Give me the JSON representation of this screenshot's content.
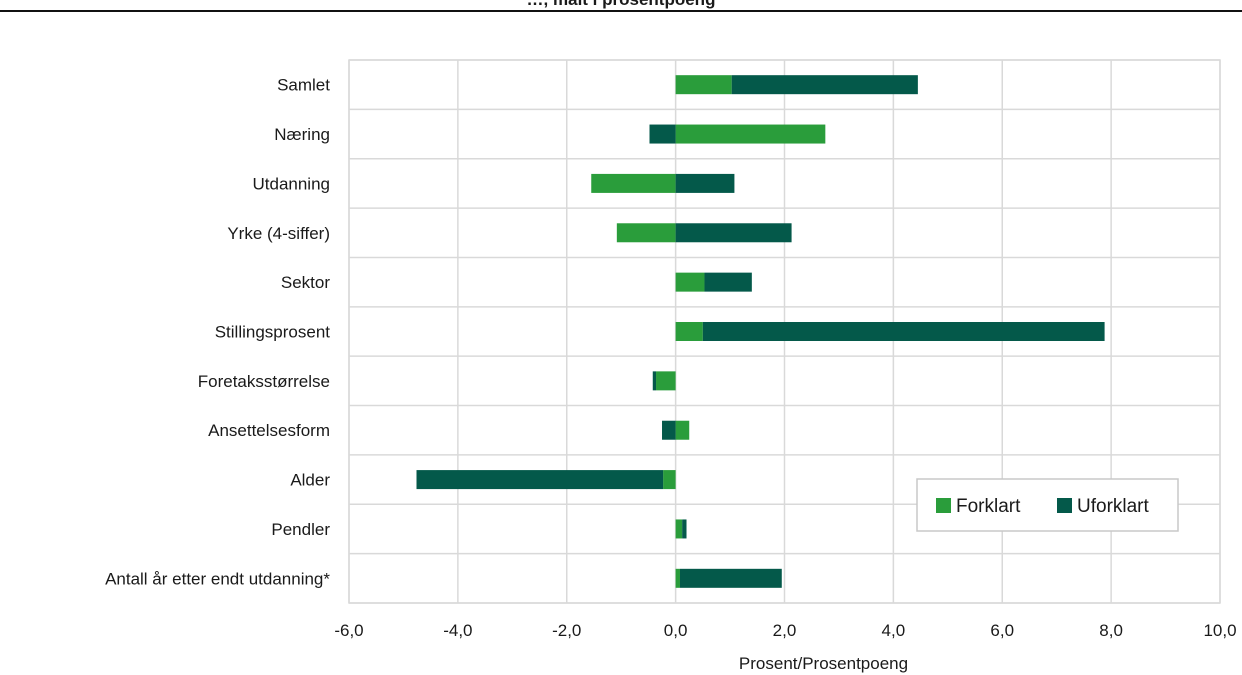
{
  "header": {
    "title_fragment": "…, målt i prosentpoeng"
  },
  "colors": {
    "forklart": "#2a9d3b",
    "uforklart": "#04594a",
    "grid": "#d9d9d9",
    "frame": "#d9d9d9"
  },
  "chart_data": {
    "type": "bar",
    "orientation": "horizontal",
    "stacked": true,
    "categories": [
      "Samlet",
      "Næring",
      "Utdanning",
      "Yrke (4-siffer)",
      "Sektor",
      "Stillingsprosent",
      "Foretaksstørrelse",
      "Ansettelsesform",
      "Alder",
      "Pendler",
      "Antall år etter endt utdanning*"
    ],
    "series": [
      {
        "name": "Forklart",
        "values": [
          1.03,
          2.75,
          -1.55,
          -1.08,
          0.53,
          0.5,
          -0.36,
          0.25,
          -0.23,
          0.12,
          0.08
        ]
      },
      {
        "name": "Uforklart",
        "values": [
          3.42,
          -0.48,
          1.08,
          2.13,
          0.87,
          7.38,
          -0.06,
          -0.25,
          -4.53,
          0.08,
          1.87
        ]
      }
    ],
    "x_ticks": [
      "-6,0",
      "-4,0",
      "-2,0",
      "0,0",
      "2,0",
      "4,0",
      "6,0",
      "8,0",
      "10,0"
    ],
    "x_tick_values": [
      -6,
      -4,
      -2,
      0,
      2,
      4,
      6,
      8,
      10
    ],
    "xlim": [
      -6,
      10
    ],
    "xlabel": "Prosent/Prosentpoeng",
    "ylabel": "",
    "grid": true,
    "legend": {
      "placement": "bottom-right",
      "entries": [
        "Forklart",
        "Uforklart"
      ]
    }
  }
}
